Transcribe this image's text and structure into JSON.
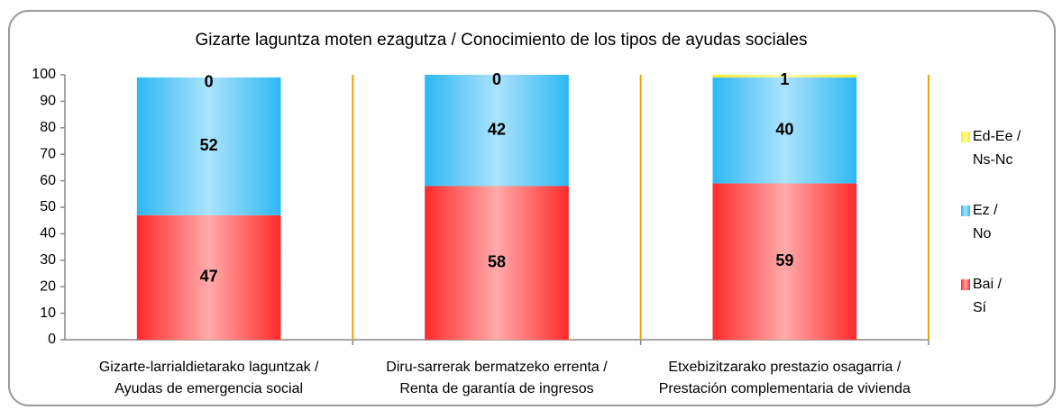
{
  "chart_data": {
    "type": "stacked_bar",
    "title": "Gizarte laguntza moten ezagutza / Conocimiento de los tipos de ayudas sociales",
    "categories": [
      [
        "Gizarte-larrialdietarako laguntzak /",
        "Ayudas de emergencia social"
      ],
      [
        "Diru-sarrerak bermatzeko errenta /",
        "Renta de garantía de ingresos"
      ],
      [
        "Etxebizitzarako prestazio osagarria /",
        "Prestación complementaria de vivienda"
      ]
    ],
    "series": [
      {
        "name": [
          "Bai /",
          "Sí"
        ],
        "color": "#ff2a2a",
        "values": [
          47,
          58,
          59
        ]
      },
      {
        "name": [
          "Ez /",
          "No"
        ],
        "color": "#2eb8f5",
        "values": [
          52,
          42,
          40
        ]
      },
      {
        "name": [
          "Ed-Ee /",
          "Ns-Nc"
        ],
        "color": "#ffee22",
        "values": [
          0,
          0,
          1
        ]
      }
    ],
    "ylim": [
      0,
      100
    ],
    "yticks": [
      0,
      10,
      20,
      30,
      40,
      50,
      60,
      70,
      80,
      90,
      100
    ],
    "legend": "right"
  }
}
